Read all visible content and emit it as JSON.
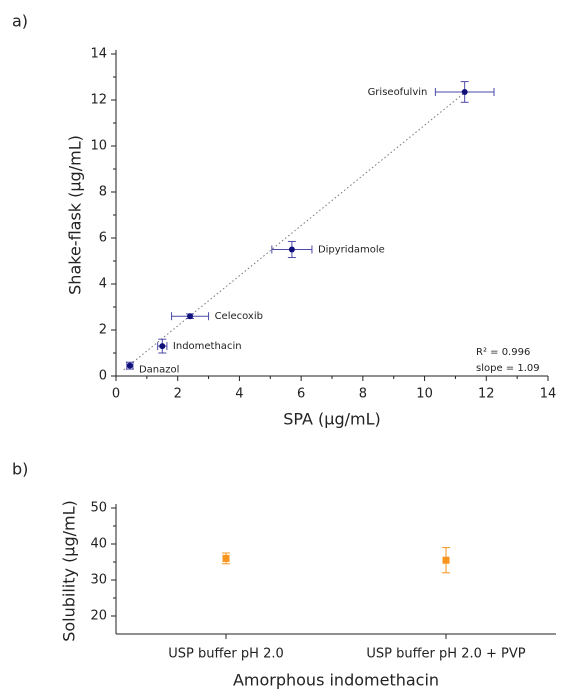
{
  "chart_data": [
    {
      "type": "scatter",
      "panel_label": "a)",
      "xlabel": "SPA (µg/mL)",
      "ylabel": "Shake-flask (µg/mL)",
      "point_labels": [
        "Danazol",
        "Indomethacin",
        "Celecoxib",
        "Dipyridamole",
        "Griseofulvin"
      ],
      "x": [
        0.45,
        1.5,
        2.4,
        5.7,
        11.3
      ],
      "values": [
        0.45,
        1.3,
        2.6,
        5.5,
        12.35
      ],
      "x_errors": [
        0.1,
        0.15,
        0.6,
        0.65,
        0.95
      ],
      "errors": [
        0.15,
        0.3,
        0.1,
        0.35,
        0.45
      ],
      "color": "#10107a",
      "error_color": "#4a4aa8",
      "trendline": {
        "x": [
          0.25,
          11.3
        ],
        "y": [
          0.27,
          12.32
        ]
      },
      "annotations": [
        "R² = 0.996",
        "slope = 1.09"
      ],
      "xlim": [
        0,
        14
      ],
      "xticks": [
        0,
        2,
        4,
        6,
        8,
        10,
        12,
        14
      ],
      "ylim": [
        0,
        14
      ],
      "yticks": [
        0,
        2,
        4,
        6,
        8,
        10,
        12,
        14
      ]
    },
    {
      "type": "scatter",
      "panel_label": "b)",
      "xlabel": "Amorphous indomethacin",
      "ylabel": "Solubility (µg/mL)",
      "categories": [
        "USP buffer pH 2.0",
        "USP buffer pH 2.0 + PVP"
      ],
      "values": [
        36,
        35.5
      ],
      "errors": [
        1.5,
        3.5
      ],
      "color": "#f7941d",
      "ylim": [
        15,
        50
      ],
      "yticks": [
        20,
        30,
        40,
        50
      ]
    }
  ]
}
